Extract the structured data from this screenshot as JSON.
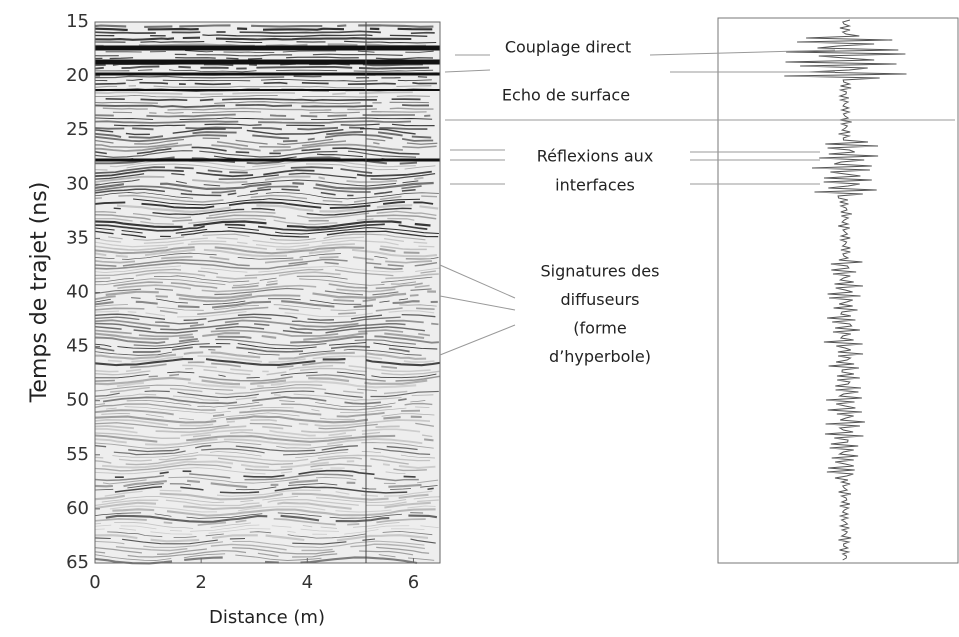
{
  "chart_data": {
    "type": "radargram",
    "xlabel": "Distance (m)",
    "ylabel": "Temps de trajet (ns)",
    "xlim": [
      0,
      6.5
    ],
    "ylim": [
      65,
      15
    ],
    "xticks": [
      0,
      2,
      4,
      6
    ],
    "yticks": [
      15,
      20,
      25,
      30,
      35,
      40,
      45,
      50,
      55,
      60,
      65
    ],
    "annotations": [
      {
        "lines": [
          "Couplage direct"
        ]
      },
      {
        "lines": [
          "Echo de surface"
        ]
      },
      {
        "lines": [
          "Réflexions aux",
          "interfaces"
        ]
      },
      {
        "lines": [
          "Signatures des",
          "diffuseurs",
          "(forme",
          "d’hyperbole)"
        ]
      }
    ]
  }
}
